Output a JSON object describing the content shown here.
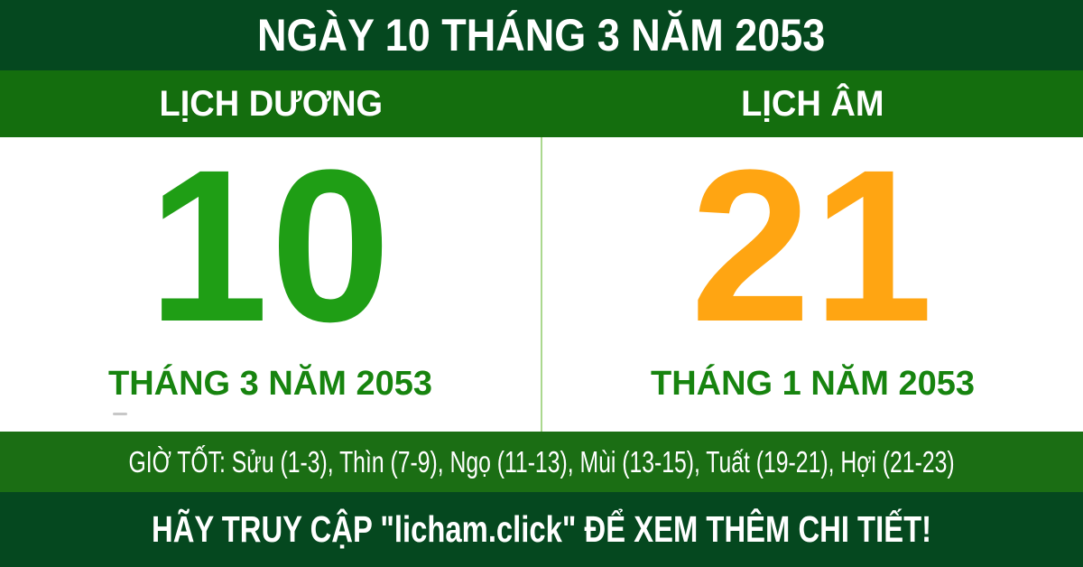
{
  "header": {
    "title": "NGÀY 10 THÁNG 3 NĂM 2053"
  },
  "calendar": {
    "solar": {
      "label": "LỊCH DƯƠNG",
      "day": "10",
      "month_year": "THÁNG 3 NĂM 2053"
    },
    "lunar": {
      "label": "LỊCH ÂM",
      "day": "21",
      "month_year": "THÁNG 1 NĂM 2053"
    }
  },
  "good_hours": {
    "text": "GIỜ TỐT: Sửu (1-3), Thìn (7-9), Ngọ (11-13), Mùi (13-15), Tuất (19-21), Hợi (21-23)"
  },
  "footer": {
    "text": "HÃY TRUY CẬP \"licham.click\" ĐỂ XEM THÊM CHI TIẾT!"
  },
  "colors": {
    "dark_green": "#05481f",
    "medium_green": "#146e0e",
    "solar_day_green": "#1f9e15",
    "month_text_green": "#17840f",
    "lunar_day_orange": "#ffa512",
    "divider_light_green": "#abd88e",
    "text_white": "#ffffff"
  }
}
